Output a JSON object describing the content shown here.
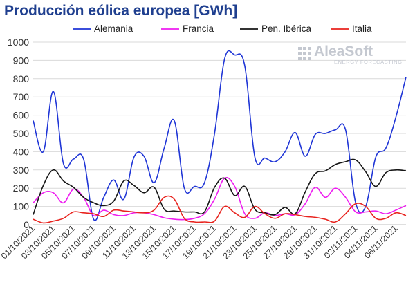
{
  "page": {
    "title": "Producción eólica europea [GWh]"
  },
  "logo": {
    "name": "AleaSoft",
    "tagline": "ENERGY FORECASTING"
  },
  "chart_data": {
    "type": "line",
    "title": "Producción eólica europea [GWh]",
    "ylim": [
      0,
      1000
    ],
    "yticks": [
      0,
      100,
      200,
      300,
      400,
      500,
      600,
      700,
      800,
      900,
      1000
    ],
    "grid": true,
    "legend_position": "top",
    "x": [
      "01/10/2021",
      "02/10/2021",
      "03/10/2021",
      "04/10/2021",
      "05/10/2021",
      "06/10/2021",
      "07/10/2021",
      "08/10/2021",
      "09/10/2021",
      "10/10/2021",
      "11/10/2021",
      "12/10/2021",
      "13/10/2021",
      "14/10/2021",
      "15/10/2021",
      "16/10/2021",
      "17/10/2021",
      "18/10/2021",
      "19/10/2021",
      "20/10/2021",
      "21/10/2021",
      "22/10/2021",
      "23/10/2021",
      "24/10/2021",
      "25/10/2021",
      "26/10/2021",
      "27/10/2021",
      "28/10/2021",
      "29/10/2021",
      "30/10/2021",
      "31/10/2021",
      "01/11/2021",
      "02/11/2021",
      "03/11/2021",
      "04/11/2021",
      "05/11/2021",
      "06/11/2021",
      "07/11/2021"
    ],
    "xticklabels": [
      "01/10/2021",
      "03/10/2021",
      "05/10/2021",
      "07/10/2021",
      "09/10/2021",
      "11/10/2021",
      "13/10/2021",
      "15/10/2021",
      "17/10/2021",
      "19/10/2021",
      "21/10/2021",
      "23/10/2021",
      "25/10/2021",
      "27/10/2021",
      "29/10/2021",
      "31/10/2021",
      "02/11/2021",
      "04/11/2021",
      "06/11/2021"
    ],
    "series": [
      {
        "name": "Alemania",
        "color": "#1f35d6",
        "values": [
          570,
          400,
          730,
          335,
          360,
          360,
          30,
          150,
          245,
          140,
          370,
          375,
          230,
          420,
          570,
          200,
          210,
          230,
          500,
          910,
          930,
          870,
          370,
          365,
          345,
          400,
          505,
          375,
          495,
          500,
          520,
          520,
          120,
          100,
          370,
          420,
          590,
          810
        ]
      },
      {
        "name": "Francia",
        "color": "#ee1cf0",
        "values": [
          120,
          175,
          175,
          120,
          195,
          150,
          50,
          80,
          55,
          50,
          65,
          65,
          55,
          38,
          30,
          28,
          35,
          60,
          140,
          255,
          210,
          60,
          35,
          65,
          50,
          60,
          55,
          115,
          205,
          150,
          200,
          150,
          70,
          70,
          75,
          60,
          80,
          105
        ]
      },
      {
        "name": "Pen. Ibérica",
        "color": "#161616",
        "values": [
          55,
          215,
          300,
          240,
          205,
          150,
          120,
          105,
          130,
          240,
          215,
          175,
          205,
          85,
          75,
          70,
          70,
          70,
          205,
          255,
          160,
          210,
          85,
          65,
          55,
          95,
          60,
          180,
          280,
          295,
          330,
          345,
          355,
          290,
          210,
          285,
          300,
          295
        ]
      },
      {
        "name": "Italia",
        "color": "#e8231e",
        "values": [
          30,
          10,
          20,
          35,
          70,
          65,
          60,
          45,
          80,
          75,
          70,
          65,
          80,
          150,
          140,
          35,
          15,
          15,
          20,
          100,
          65,
          40,
          100,
          60,
          35,
          60,
          55,
          45,
          40,
          30,
          15,
          60,
          115,
          100,
          35,
          35,
          65,
          50
        ]
      }
    ]
  }
}
